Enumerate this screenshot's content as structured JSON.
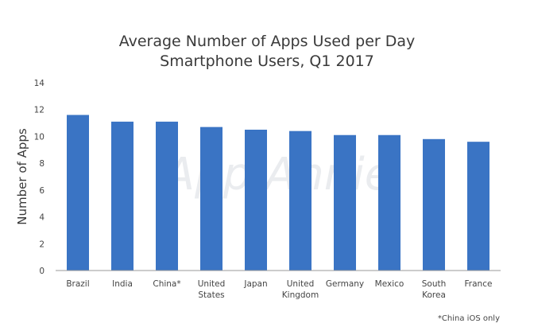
{
  "chart_data": {
    "type": "bar",
    "title": [
      "Average Number of Apps Used per Day",
      "Smartphone Users, Q1 2017"
    ],
    "xlabel": "",
    "ylabel": "Number of Apps",
    "ylim": [
      0,
      14
    ],
    "yticks": [
      0,
      2,
      4,
      6,
      8,
      10,
      12,
      14
    ],
    "categories": [
      [
        "Brazil"
      ],
      [
        "India"
      ],
      [
        "China*"
      ],
      [
        "United",
        "States"
      ],
      [
        "Japan"
      ],
      [
        "United",
        "Kingdom"
      ],
      [
        "Germany"
      ],
      [
        "Mexico"
      ],
      [
        "South",
        "Korea"
      ],
      [
        "France"
      ]
    ],
    "values": [
      11.6,
      11.1,
      11.1,
      10.7,
      10.5,
      10.4,
      10.1,
      10.1,
      9.8,
      9.6
    ],
    "bar_color": "#3a74c4",
    "grid": false,
    "legend": "none",
    "watermark": "App Annie",
    "footnote": "*China iOS only"
  }
}
